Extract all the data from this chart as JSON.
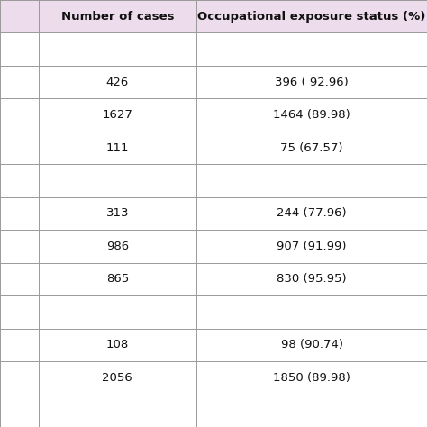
{
  "header": [
    "",
    "Number of cases",
    "Occupational exposure status (%)"
  ],
  "rows": [
    [
      "",
      "",
      ""
    ],
    [
      "",
      "426",
      "396 ( 92.96)"
    ],
    [
      "",
      "1627",
      "1464 (89.98)"
    ],
    [
      "",
      "111",
      "75 (67.57)"
    ],
    [
      "",
      "",
      ""
    ],
    [
      "",
      "313",
      "244 (77.96)"
    ],
    [
      "",
      "986",
      "907 (91.99)"
    ],
    [
      "",
      "865",
      "830 (95.95)"
    ],
    [
      "",
      "",
      ""
    ],
    [
      "",
      "108",
      "98 (90.74)"
    ],
    [
      "",
      "2056",
      "1850 (89.98)"
    ],
    [
      "",
      "",
      ""
    ]
  ],
  "col_starts": [
    0.0,
    0.09,
    0.46
  ],
  "col_ends": [
    0.09,
    0.46,
    1.0
  ],
  "header_bg": "#ecdcec",
  "table_bg": "#ffffff",
  "line_color": "#999999",
  "header_font_size": 9.5,
  "cell_font_size": 9.5,
  "text_color": "#111111",
  "figsize": [
    4.74,
    4.74
  ],
  "dpi": 100,
  "n_rows": 12,
  "n_header": 1
}
